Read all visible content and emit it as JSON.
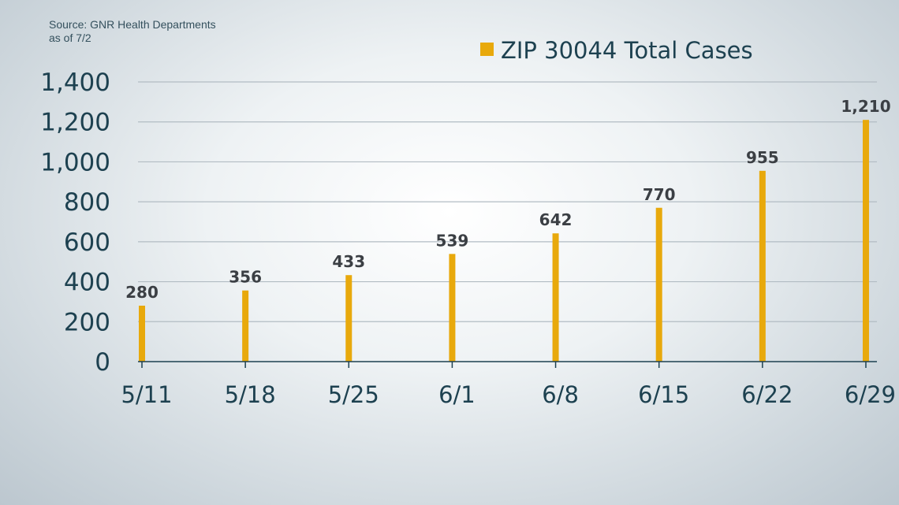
{
  "source": {
    "line1": "Source: GNR Health Departments",
    "line2": "as of 7/2"
  },
  "colors": {
    "bar": "#e8a90c",
    "grid": "#b2bcc3",
    "axis": "#1d4150",
    "label": "#3b3f44"
  },
  "chart_data": {
    "type": "bar",
    "title": "",
    "xlabel": "",
    "ylabel": "",
    "categories": [
      "5/11",
      "5/18",
      "5/25",
      "6/1",
      "6/8",
      "6/15",
      "6/22",
      "6/29"
    ],
    "series": [
      {
        "name": "ZIP 30044 Total Cases",
        "values": [
          280,
          356,
          433,
          539,
          642,
          770,
          955,
          1210
        ],
        "data_labels": [
          "280",
          "356",
          "433",
          "539",
          "642",
          "770",
          "955",
          "1,210"
        ]
      }
    ],
    "ylim": [
      0,
      1400
    ],
    "yticks": [
      0,
      200,
      400,
      600,
      800,
      1000,
      1200,
      1400
    ],
    "ytick_labels": [
      "0",
      "200",
      "400",
      "600",
      "800",
      "1,000",
      "1,200",
      "1,400"
    ],
    "grid": true,
    "legend": "top-right"
  }
}
